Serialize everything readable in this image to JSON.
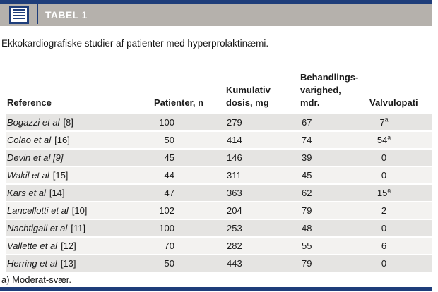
{
  "header": {
    "tag_label": "TABEL 1",
    "icon": "table-list-icon"
  },
  "subtitle": "Ekkokardiografiske studier af patienter med hyperprolaktinæmi.",
  "table": {
    "columns": [
      {
        "label": "Reference"
      },
      {
        "label": "Patienter, n"
      },
      {
        "label": "Kumulativ\ndosis, mg"
      },
      {
        "label": "Behandlings-\nvarighed,\nmdr."
      },
      {
        "label": "Valvulopati"
      }
    ],
    "rows": [
      {
        "name": "Bogazzi et al",
        "ref": "[8]",
        "patients": "100",
        "dose": "279",
        "duration": "67",
        "valvulopathy": "7",
        "valv_sup": "a"
      },
      {
        "name": "Colao et al",
        "ref": "[16]",
        "patients": "50",
        "dose": "414",
        "duration": "74",
        "valvulopathy": "54",
        "valv_sup": "a"
      },
      {
        "name": "Devin et al [9]",
        "ref": "",
        "patients": "45",
        "dose": "146",
        "duration": "39",
        "valvulopathy": "0"
      },
      {
        "name": "Wakil et al",
        "ref": "[15]",
        "patients": "44",
        "dose": "311",
        "duration": "45",
        "valvulopathy": "0"
      },
      {
        "name": "Kars et al",
        "ref": "[14]",
        "patients": "47",
        "dose": "363",
        "duration": "62",
        "valvulopathy": "15",
        "valv_sup": "a"
      },
      {
        "name": "Lancellotti et al",
        "ref": "[10]",
        "patients": "102",
        "dose": "204",
        "duration": "79",
        "valvulopathy": "2"
      },
      {
        "name": "Nachtigall et al",
        "ref": "[11]",
        "patients": "100",
        "dose": "253",
        "duration": "48",
        "valvulopathy": "0"
      },
      {
        "name": "Vallette et al",
        "ref": "[12]",
        "patients": "70",
        "dose": "282",
        "duration": "55",
        "valvulopathy": "6"
      },
      {
        "name": "Herring et al",
        "ref": "[13]",
        "patients": "50",
        "dose": "443",
        "duration": "79",
        "valvulopathy": "0"
      }
    ]
  },
  "footnote": "a) Moderat-svær.",
  "colors": {
    "accent_navy": "#1e3d7a",
    "band_gray": "#b5b1ac",
    "row_stripe_gray": "#e5e4e2",
    "row_stripe_light": "#f3f2f0"
  }
}
